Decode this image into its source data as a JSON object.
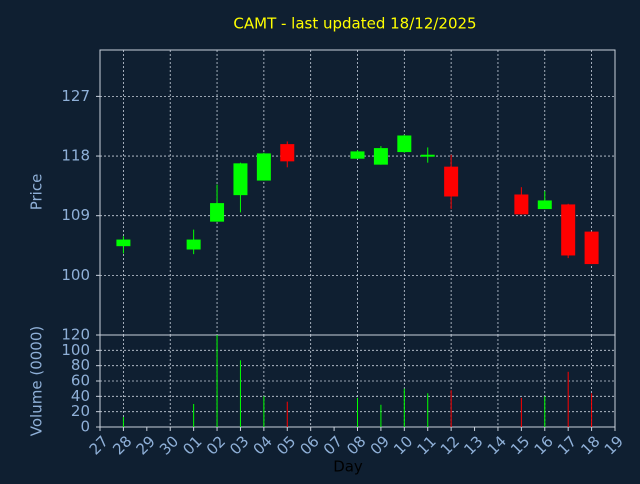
{
  "chart_data": {
    "type": "candlestick",
    "title": "CAMT - last updated 18/12/2025",
    "xlabel": "Day",
    "ylabel": "Price",
    "y2label": "Volume (0000)",
    "categories": [
      "27",
      "28",
      "29",
      "30",
      "01",
      "02",
      "03",
      "04",
      "05",
      "06",
      "07",
      "08",
      "09",
      "10",
      "11",
      "12",
      "13",
      "14",
      "15",
      "16",
      "17",
      "18",
      "19"
    ],
    "open": [
      null,
      104.4,
      null,
      null,
      103.9,
      108.1,
      112.1,
      114.3,
      119.8,
      null,
      null,
      117.6,
      116.7,
      118.6,
      117.9,
      116.4,
      null,
      null,
      112.2,
      110.0,
      110.7,
      106.6,
      null
    ],
    "high": [
      null,
      105.9,
      null,
      null,
      106.9,
      113.7,
      117.0,
      118.5,
      120.2,
      null,
      null,
      118.9,
      119.5,
      121.2,
      119.3,
      118.2,
      null,
      null,
      113.3,
      112.7,
      110.8,
      106.6,
      null
    ],
    "low": [
      null,
      103.3,
      null,
      null,
      103.2,
      108.1,
      109.5,
      114.3,
      116.3,
      null,
      null,
      117.6,
      116.7,
      118.5,
      117.0,
      110.0,
      null,
      null,
      109.2,
      110.0,
      102.6,
      101.7,
      null
    ],
    "close": [
      null,
      105.4,
      null,
      null,
      105.4,
      110.9,
      116.9,
      118.4,
      117.2,
      null,
      null,
      118.7,
      119.2,
      121.1,
      118.2,
      111.9,
      null,
      null,
      109.2,
      111.3,
      103.0,
      101.7,
      null
    ],
    "volume": [
      null,
      13,
      null,
      null,
      30,
      120,
      87,
      40,
      33,
      null,
      null,
      38,
      29,
      50,
      44,
      48,
      null,
      null,
      38,
      40,
      72,
      44,
      null
    ],
    "up_color": "#00ff00",
    "down_color": "#ff0000",
    "ylim": [
      91,
      134
    ],
    "yticks": [
      100,
      109,
      118,
      127
    ],
    "y2lim": [
      0,
      120
    ],
    "y2ticks": [
      0,
      20,
      40,
      60,
      80,
      100,
      120
    ],
    "grid": true
  }
}
